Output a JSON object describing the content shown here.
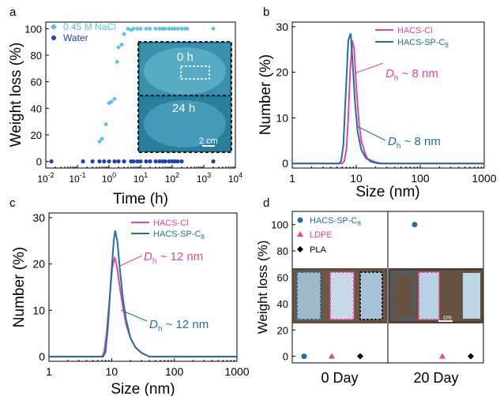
{
  "panels": [
    {
      "letter": "a"
    },
    {
      "letter": "b"
    },
    {
      "letter": "c"
    },
    {
      "letter": "d"
    }
  ],
  "colors": {
    "nacl": "#5bc0eb",
    "water": "#1f3fb5",
    "pink": "#e8449b",
    "blue": "#1f6ea8",
    "black": "#000000"
  },
  "chart_data": [
    {
      "panel": "a",
      "type": "scatter",
      "xlabel": "Time (h)",
      "ylabel": "Weight loss (%)",
      "x_scale": "log",
      "xlim": [
        0.01,
        10000
      ],
      "ylim": [
        -5,
        105
      ],
      "x_ticks": [
        0.01,
        0.1,
        1,
        10,
        100,
        1000,
        10000
      ],
      "x_tick_labels": [
        [
          "10",
          "-2"
        ],
        [
          "10",
          "-1"
        ],
        [
          "10",
          "0"
        ],
        [
          "10",
          "1"
        ],
        [
          "10",
          "2"
        ],
        [
          "10",
          "3"
        ],
        [
          "10",
          "4"
        ]
      ],
      "y_ticks": [
        0,
        20,
        40,
        60,
        80,
        100
      ],
      "legend": "top-left",
      "inset_labels": {
        "top": "0 h",
        "bottom": "24 h",
        "scale": "2 cm"
      },
      "series": [
        {
          "name": "0.45 M NaCl",
          "marker": "diamond",
          "color": "#5bc0eb",
          "points": [
            [
              0.5,
              15
            ],
            [
              0.6,
              17
            ],
            [
              0.8,
              28
            ],
            [
              1.0,
              44
            ],
            [
              1.2,
              45
            ],
            [
              1.5,
              47
            ],
            [
              1.8,
              75
            ],
            [
              2.0,
              86
            ],
            [
              2.5,
              88
            ],
            [
              3,
              96
            ],
            [
              4,
              100
            ],
            [
              5,
              99
            ],
            [
              6,
              100
            ],
            [
              8,
              100
            ],
            [
              10,
              100
            ],
            [
              15,
              100
            ],
            [
              20,
              100
            ],
            [
              30,
              100
            ],
            [
              40,
              100
            ],
            [
              50,
              100
            ],
            [
              60,
              100
            ],
            [
              80,
              100
            ],
            [
              100,
              100
            ],
            [
              120,
              100
            ],
            [
              150,
              100
            ],
            [
              200,
              100
            ],
            [
              250,
              100
            ],
            [
              300,
              100
            ],
            [
              2000,
              100
            ]
          ]
        },
        {
          "name": "Water",
          "marker": "circle",
          "color": "#1f3fb5",
          "points": [
            [
              0.015,
              0
            ],
            [
              0.15,
              0
            ],
            [
              0.3,
              0
            ],
            [
              0.5,
              0
            ],
            [
              0.7,
              0
            ],
            [
              1,
              0
            ],
            [
              1.5,
              0
            ],
            [
              2,
              0
            ],
            [
              3,
              0
            ],
            [
              5,
              0
            ],
            [
              6,
              0
            ],
            [
              8,
              0
            ],
            [
              10,
              0
            ],
            [
              15,
              0
            ],
            [
              20,
              0
            ],
            [
              30,
              0
            ],
            [
              40,
              0
            ],
            [
              50,
              0
            ],
            [
              60,
              0
            ],
            [
              80,
              0
            ],
            [
              100,
              0
            ],
            [
              120,
              0
            ],
            [
              150,
              0
            ],
            [
              200,
              0
            ],
            [
              2000,
              0
            ]
          ]
        }
      ]
    },
    {
      "panel": "b",
      "type": "line",
      "xlabel": "Size (nm)",
      "ylabel": "Number (%)",
      "x_scale": "log",
      "xlim": [
        1,
        1000
      ],
      "ylim": [
        -1,
        31
      ],
      "x_ticks": [
        1,
        10,
        100,
        1000
      ],
      "x_tick_labels": [
        "1",
        "10",
        "100",
        "1000"
      ],
      "y_ticks": [
        0,
        10,
        20,
        30
      ],
      "legend": "top-right",
      "series": [
        {
          "name": "HACS-Cl",
          "color": "#e8449b",
          "points": [
            [
              1,
              0
            ],
            [
              6.0,
              0
            ],
            [
              6.5,
              0.5
            ],
            [
              7.0,
              3
            ],
            [
              7.5,
              10
            ],
            [
              8.0,
              20
            ],
            [
              8.7,
              27
            ],
            [
              9.3,
              25
            ],
            [
              10,
              17
            ],
            [
              11,
              9
            ],
            [
              12,
              5
            ],
            [
              13.5,
              2.5
            ],
            [
              15,
              1
            ],
            [
              20,
              0.3
            ],
            [
              25,
              0
            ],
            [
              1000,
              0
            ]
          ]
        },
        {
          "name": "HACS-SP-C8",
          "color": "#1f6ea8",
          "points": [
            [
              1,
              0
            ],
            [
              5.4,
              0
            ],
            [
              5.8,
              0.5
            ],
            [
              6.3,
              4
            ],
            [
              6.9,
              16
            ],
            [
              7.5,
              27
            ],
            [
              8.2,
              28.5
            ],
            [
              8.8,
              22
            ],
            [
              9.5,
              14
            ],
            [
              10.5,
              7
            ],
            [
              12,
              3
            ],
            [
              14,
              1.3
            ],
            [
              17,
              0.4
            ],
            [
              22,
              0
            ],
            [
              1000,
              0
            ]
          ]
        }
      ],
      "annotations": [
        {
          "text": "D",
          "sub": "h",
          "rest": " ~ 8 nm",
          "color": "#e8449b"
        },
        {
          "text": "D",
          "sub": "h",
          "rest": " ~ 8 nm",
          "color": "#1f6ea8"
        }
      ]
    },
    {
      "panel": "c",
      "type": "line",
      "xlabel": "Size (nm)",
      "ylabel": "Number (%)",
      "x_scale": "log",
      "xlim": [
        1,
        1000
      ],
      "ylim": [
        -1,
        31
      ],
      "x_ticks": [
        1,
        10,
        100,
        1000
      ],
      "x_tick_labels": [
        "1",
        "10",
        "100",
        "1000"
      ],
      "y_ticks": [
        0,
        10,
        20,
        30
      ],
      "legend": "top-right",
      "series": [
        {
          "name": "HACS-Cl",
          "color": "#e8449b",
          "points": [
            [
              1,
              0
            ],
            [
              7.0,
              0
            ],
            [
              7.6,
              1
            ],
            [
              8.3,
              5
            ],
            [
              9.2,
              12
            ],
            [
              10.2,
              19
            ],
            [
              11.2,
              21.5
            ],
            [
              12.3,
              19
            ],
            [
              13.5,
              15
            ],
            [
              15,
              11
            ],
            [
              17,
              7
            ],
            [
              20,
              4
            ],
            [
              24,
              2
            ],
            [
              30,
              0.8
            ],
            [
              40,
              0
            ],
            [
              1000,
              0
            ]
          ]
        },
        {
          "name": "HACS-SP-C8",
          "color": "#1f6ea8",
          "points": [
            [
              1,
              0
            ],
            [
              7.3,
              0
            ],
            [
              8.0,
              1
            ],
            [
              8.8,
              7
            ],
            [
              9.8,
              17
            ],
            [
              10.8,
              25
            ],
            [
              11.4,
              27.2
            ],
            [
              12.3,
              25
            ],
            [
              13.5,
              19
            ],
            [
              15,
              13
            ],
            [
              17,
              8
            ],
            [
              20,
              4
            ],
            [
              24,
              2
            ],
            [
              30,
              0.8
            ],
            [
              40,
              0
            ],
            [
              1000,
              0
            ]
          ]
        }
      ],
      "annotations": [
        {
          "text": "D",
          "sub": "h",
          "rest": " ~ 12 nm",
          "color": "#e8449b"
        },
        {
          "text": "D",
          "sub": "h",
          "rest": " ~ 12 nm",
          "color": "#1f6ea8"
        }
      ]
    },
    {
      "panel": "d",
      "type": "scatter",
      "ylabel": "Weight loss (%)",
      "categories": [
        "0 Day",
        "20 Day"
      ],
      "ylim": [
        -5,
        110
      ],
      "y_ticks": [
        0,
        20,
        40,
        60,
        80,
        100
      ],
      "legend": "top-left",
      "photo_scale_label": "cm",
      "series": [
        {
          "name": "HACS-SP-C8",
          "marker": "circle",
          "color": "#1f6ea8",
          "values": [
            0,
            100
          ]
        },
        {
          "name": "LDPE",
          "marker": "triangle",
          "color": "#e8449b",
          "values": [
            0,
            0
          ]
        },
        {
          "name": "PLA",
          "marker": "diamond",
          "color": "#000000",
          "values": [
            0,
            0
          ]
        }
      ]
    }
  ]
}
